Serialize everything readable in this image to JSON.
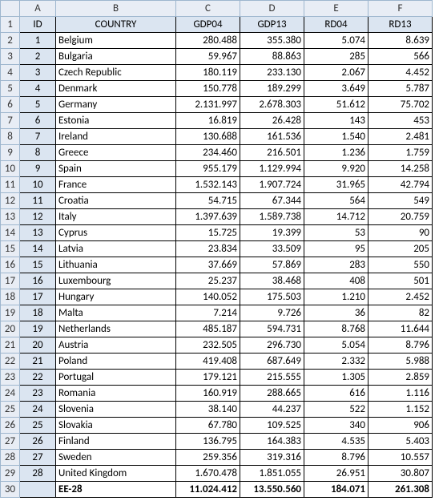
{
  "columns": [
    "A",
    "B",
    "C",
    "D",
    "E",
    "F"
  ],
  "header": {
    "id": "ID",
    "country": "COUNTRY",
    "gdp04": "GDP04",
    "gdp13": "GDP13",
    "rd04": "RD04",
    "rd13": "RD13"
  },
  "rows": [
    {
      "n": "1",
      "id": "1",
      "country": "Belgium",
      "gdp04": "280.488",
      "gdp13": "355.380",
      "rd04": "5.074",
      "rd13": "8.639"
    },
    {
      "n": "2",
      "id": "2",
      "country": "Bulgaria",
      "gdp04": "59.967",
      "gdp13": "88.863",
      "rd04": "285",
      "rd13": "566"
    },
    {
      "n": "3",
      "id": "3",
      "country": "Czech Republic",
      "gdp04": "180.119",
      "gdp13": "233.130",
      "rd04": "2.067",
      "rd13": "4.452"
    },
    {
      "n": "4",
      "id": "4",
      "country": "Denmark",
      "gdp04": "150.778",
      "gdp13": "189.299",
      "rd04": "3.649",
      "rd13": "5.787"
    },
    {
      "n": "5",
      "id": "5",
      "country": "Germany",
      "gdp04": "2.131.997",
      "gdp13": "2.678.303",
      "rd04": "51.612",
      "rd13": "75.702"
    },
    {
      "n": "6",
      "id": "6",
      "country": "Estonia",
      "gdp04": "16.819",
      "gdp13": "26.428",
      "rd04": "143",
      "rd13": "453"
    },
    {
      "n": "7",
      "id": "7",
      "country": "Ireland",
      "gdp04": "130.688",
      "gdp13": "161.536",
      "rd04": "1.540",
      "rd13": "2.481"
    },
    {
      "n": "8",
      "id": "8",
      "country": "Greece",
      "gdp04": "234.460",
      "gdp13": "216.501",
      "rd04": "1.236",
      "rd13": "1.759"
    },
    {
      "n": "9",
      "id": "9",
      "country": "Spain",
      "gdp04": "955.179",
      "gdp13": "1.129.994",
      "rd04": "9.920",
      "rd13": "14.258"
    },
    {
      "n": "10",
      "id": "10",
      "country": "France",
      "gdp04": "1.532.143",
      "gdp13": "1.907.724",
      "rd04": "31.965",
      "rd13": "42.794"
    },
    {
      "n": "11",
      "id": "11",
      "country": "Croatia",
      "gdp04": "54.715",
      "gdp13": "67.344",
      "rd04": "564",
      "rd13": "549"
    },
    {
      "n": "12",
      "id": "12",
      "country": "Italy",
      "gdp04": "1.397.639",
      "gdp13": "1.589.738",
      "rd04": "14.712",
      "rd13": "20.759"
    },
    {
      "n": "13",
      "id": "13",
      "country": "Cyprus",
      "gdp04": "15.725",
      "gdp13": "19.399",
      "rd04": "53",
      "rd13": "90"
    },
    {
      "n": "14",
      "id": "14",
      "country": "Latvia",
      "gdp04": "23.834",
      "gdp13": "33.509",
      "rd04": "95",
      "rd13": "205"
    },
    {
      "n": "15",
      "id": "15",
      "country": "Lithuania",
      "gdp04": "37.669",
      "gdp13": "57.869",
      "rd04": "283",
      "rd13": "550"
    },
    {
      "n": "16",
      "id": "16",
      "country": "Luxembourg",
      "gdp04": "25.237",
      "gdp13": "38.468",
      "rd04": "408",
      "rd13": "501"
    },
    {
      "n": "17",
      "id": "17",
      "country": "Hungary",
      "gdp04": "140.052",
      "gdp13": "175.503",
      "rd04": "1.210",
      "rd13": "2.452"
    },
    {
      "n": "18",
      "id": "18",
      "country": "Malta",
      "gdp04": "7.214",
      "gdp13": "9.726",
      "rd04": "36",
      "rd13": "82"
    },
    {
      "n": "19",
      "id": "19",
      "country": "Netherlands",
      "gdp04": "485.187",
      "gdp13": "594.731",
      "rd04": "8.768",
      "rd13": "11.644"
    },
    {
      "n": "20",
      "id": "20",
      "country": "Austria",
      "gdp04": "232.505",
      "gdp13": "296.730",
      "rd04": "5.054",
      "rd13": "8.796"
    },
    {
      "n": "21",
      "id": "21",
      "country": "Poland",
      "gdp04": "419.408",
      "gdp13": "687.649",
      "rd04": "2.332",
      "rd13": "5.988"
    },
    {
      "n": "22",
      "id": "22",
      "country": "Portugal",
      "gdp04": "179.121",
      "gdp13": "215.555",
      "rd04": "1.305",
      "rd13": "2.859"
    },
    {
      "n": "23",
      "id": "23",
      "country": "Romania",
      "gdp04": "160.919",
      "gdp13": "288.665",
      "rd04": "616",
      "rd13": "1.116"
    },
    {
      "n": "24",
      "id": "24",
      "country": "Slovenia",
      "gdp04": "38.140",
      "gdp13": "44.237",
      "rd04": "522",
      "rd13": "1.152"
    },
    {
      "n": "25",
      "id": "25",
      "country": "Slovakia",
      "gdp04": "67.780",
      "gdp13": "109.525",
      "rd04": "340",
      "rd13": "906"
    },
    {
      "n": "26",
      "id": "26",
      "country": "Finland",
      "gdp04": "136.795",
      "gdp13": "164.383",
      "rd04": "4.535",
      "rd13": "5.403"
    },
    {
      "n": "27",
      "id": "27",
      "country": "Sweden",
      "gdp04": "259.356",
      "gdp13": "319.316",
      "rd04": "8.796",
      "rd13": "10.557"
    },
    {
      "n": "28",
      "id": "28",
      "country": "United Kingdom",
      "gdp04": "1.670.478",
      "gdp13": "1.851.055",
      "rd04": "26.951",
      "rd13": "30.807"
    }
  ],
  "total": {
    "n": "29",
    "id": "",
    "country": "EE-28",
    "gdp04": "11.024.412",
    "gdp13": "13.550.560",
    "rd04": "184.071",
    "rd13": "261.308"
  },
  "style": {
    "header_bg": "#dbe5f1",
    "rowhdr_bg": "#e8edf5",
    "grid_border": "#a0a0a0",
    "cell_border": "#000000",
    "font_family": "Calibri",
    "font_size_pt": 10
  }
}
